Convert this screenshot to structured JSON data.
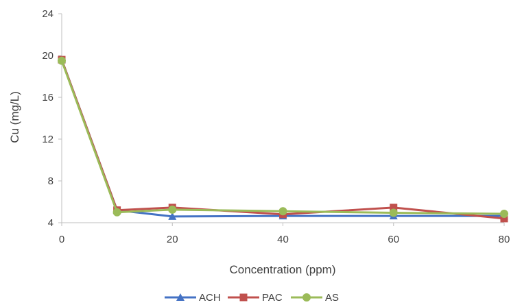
{
  "chart_data": {
    "type": "line",
    "xlabel": "Concentration (ppm)",
    "ylabel": "Cu (mg/L)",
    "x": [
      0,
      10,
      20,
      40,
      60,
      80
    ],
    "x_ticks": [
      "0",
      "20",
      "40",
      "60",
      "80"
    ],
    "y_ticks": [
      "4",
      "8",
      "12",
      "16",
      "20",
      "24"
    ],
    "xlim": [
      0,
      80
    ],
    "ylim": [
      4,
      24
    ],
    "grid": false,
    "legend_position": "bottom",
    "series": [
      {
        "name": "ACH",
        "color": "#4472C4",
        "marker": "triangle",
        "values": [
          19.6,
          5.2,
          4.6,
          4.65,
          4.65,
          4.65
        ]
      },
      {
        "name": "PAC",
        "color": "#C0504D",
        "marker": "square",
        "values": [
          19.6,
          5.2,
          5.45,
          4.8,
          5.45,
          4.4
        ]
      },
      {
        "name": "AS",
        "color": "#9BBB59",
        "marker": "circle",
        "values": [
          19.5,
          5.0,
          5.25,
          5.1,
          4.95,
          4.85
        ]
      }
    ]
  }
}
